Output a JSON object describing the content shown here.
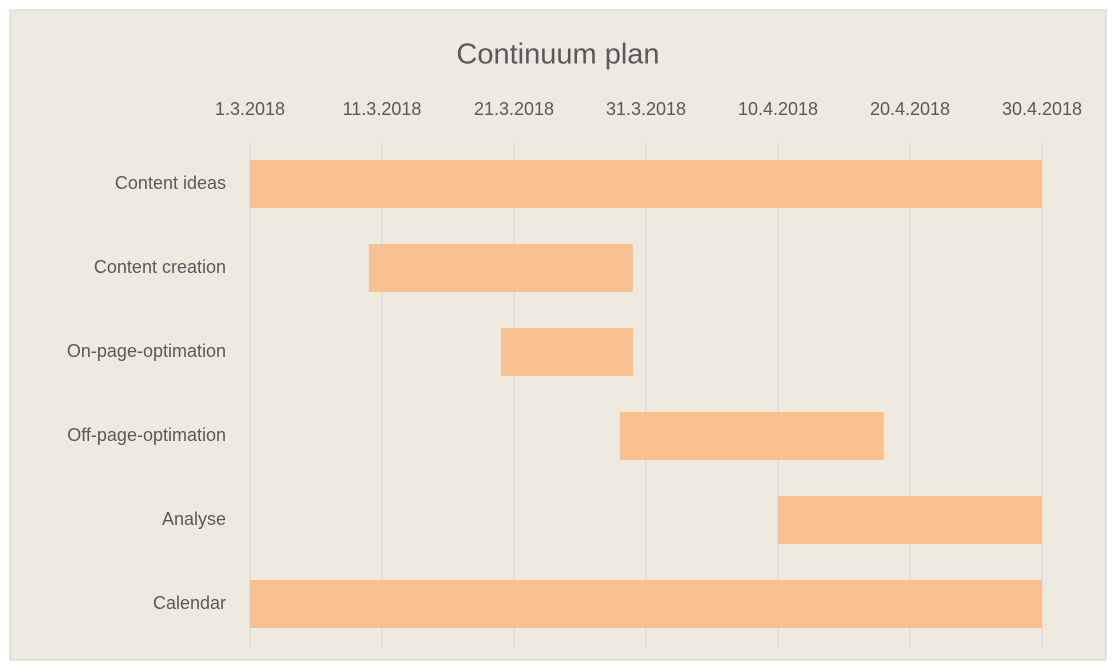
{
  "chart_data": {
    "type": "gantt",
    "title": "Continuum plan",
    "categories": [
      "Content ideas",
      "Content creation",
      "On-page-optimation",
      "Off-page-optimation",
      "Analyse",
      "Calendar"
    ],
    "start": [
      "2018-03-01",
      "2018-03-10",
      "2018-03-20",
      "2018-03-29",
      "2018-04-10",
      "2018-03-01"
    ],
    "end": [
      "2018-04-30",
      "2018-03-30",
      "2018-03-30",
      "2018-04-18",
      "2018-04-30",
      "2018-04-30"
    ],
    "color": "#f8bf8f",
    "xlim": [
      "2018-03-01",
      "2018-04-30"
    ],
    "xticks": [
      {
        "value": "2018-03-01",
        "label": "1.3.2018"
      },
      {
        "value": "2018-03-11",
        "label": "11.3.2018"
      },
      {
        "value": "2018-03-21",
        "label": "21.3.2018"
      },
      {
        "value": "2018-03-31",
        "label": "31.3.2018"
      },
      {
        "value": "2018-04-10",
        "label": "10.4.2018"
      },
      {
        "value": "2018-04-20",
        "label": "20.4.2018"
      },
      {
        "value": "2018-04-30",
        "label": "30.4.2018"
      }
    ],
    "grid": true
  }
}
